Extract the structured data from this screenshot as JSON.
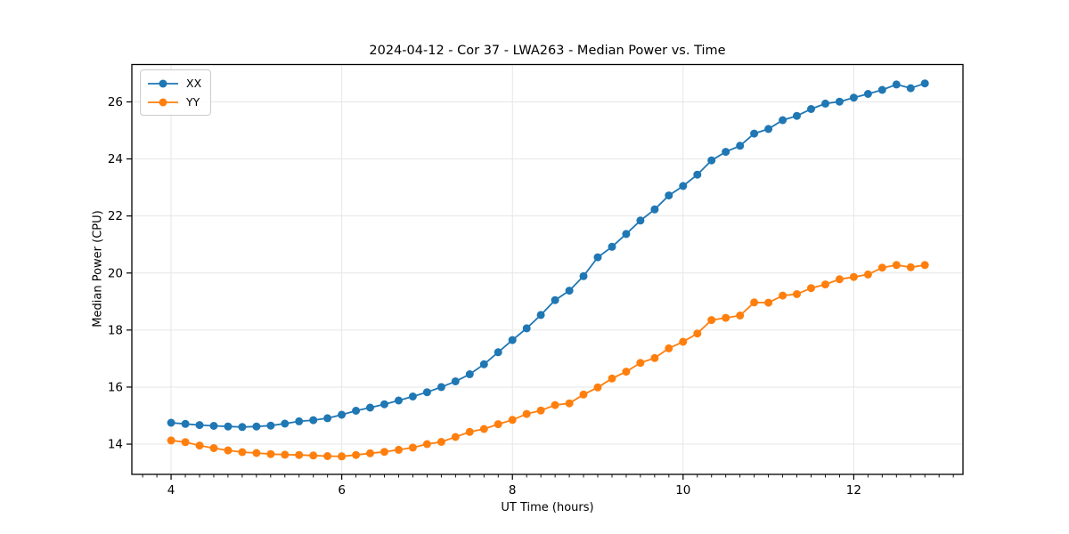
{
  "chart_data": {
    "type": "line",
    "title": "2024-04-12 - Cor 37 - LWA263 - Median Power vs. Time",
    "xlabel": "UT Time (hours)",
    "ylabel": "Median Power (CPU)",
    "xlim": [
      3.54,
      13.28
    ],
    "ylim": [
      12.94,
      27.31
    ],
    "x_major_ticks": [
      4,
      6,
      8,
      10,
      12
    ],
    "x_minor_tick_step_hours": 0.1666667,
    "y_major_ticks": [
      14,
      16,
      18,
      20,
      22,
      24,
      26
    ],
    "grid": true,
    "grid_color": "#e6e6e6",
    "legend_position": "upper-left",
    "sample_cadence_minutes": 10,
    "x": [
      4.0,
      4.167,
      4.333,
      4.5,
      4.667,
      4.833,
      5.0,
      5.167,
      5.333,
      5.5,
      5.667,
      5.833,
      6.0,
      6.167,
      6.333,
      6.5,
      6.667,
      6.833,
      7.0,
      7.167,
      7.333,
      7.5,
      7.667,
      7.833,
      8.0,
      8.167,
      8.333,
      8.5,
      8.667,
      8.833,
      9.0,
      9.167,
      9.333,
      9.5,
      9.667,
      9.833,
      10.0,
      10.167,
      10.333,
      10.5,
      10.667,
      10.833,
      11.0,
      11.167,
      11.333,
      11.5,
      11.667,
      11.833,
      12.0,
      12.167,
      12.333,
      12.5,
      12.667,
      12.833
    ],
    "series": [
      {
        "name": "XX",
        "color": "#1f77b4",
        "values": [
          14.75,
          14.71,
          14.67,
          14.64,
          14.62,
          14.6,
          14.62,
          14.65,
          14.72,
          14.8,
          14.84,
          14.91,
          15.03,
          15.17,
          15.28,
          15.4,
          15.53,
          15.67,
          15.82,
          16.0,
          16.2,
          16.45,
          16.8,
          17.22,
          17.65,
          18.06,
          18.53,
          19.05,
          19.38,
          19.89,
          20.55,
          20.92,
          21.37,
          21.84,
          22.23,
          22.72,
          23.05,
          23.45,
          23.95,
          24.25,
          24.46,
          24.89,
          25.05,
          25.36,
          25.51,
          25.75,
          25.94,
          26.01,
          26.15,
          26.28,
          26.42,
          26.61,
          26.48,
          26.65
        ]
      },
      {
        "name": "YY",
        "color": "#ff7f0e",
        "values": [
          14.13,
          14.07,
          13.95,
          13.86,
          13.78,
          13.72,
          13.69,
          13.65,
          13.63,
          13.62,
          13.6,
          13.58,
          13.57,
          13.62,
          13.68,
          13.73,
          13.8,
          13.88,
          14.0,
          14.08,
          14.25,
          14.43,
          14.53,
          14.7,
          14.85,
          15.06,
          15.18,
          15.37,
          15.43,
          15.74,
          15.99,
          16.3,
          16.54,
          16.85,
          17.02,
          17.36,
          17.59,
          17.88,
          18.35,
          18.43,
          18.51,
          18.97,
          18.96,
          19.21,
          19.26,
          19.47,
          19.6,
          19.78,
          19.86,
          19.95,
          20.19,
          20.28,
          20.2,
          20.28
        ]
      }
    ]
  }
}
